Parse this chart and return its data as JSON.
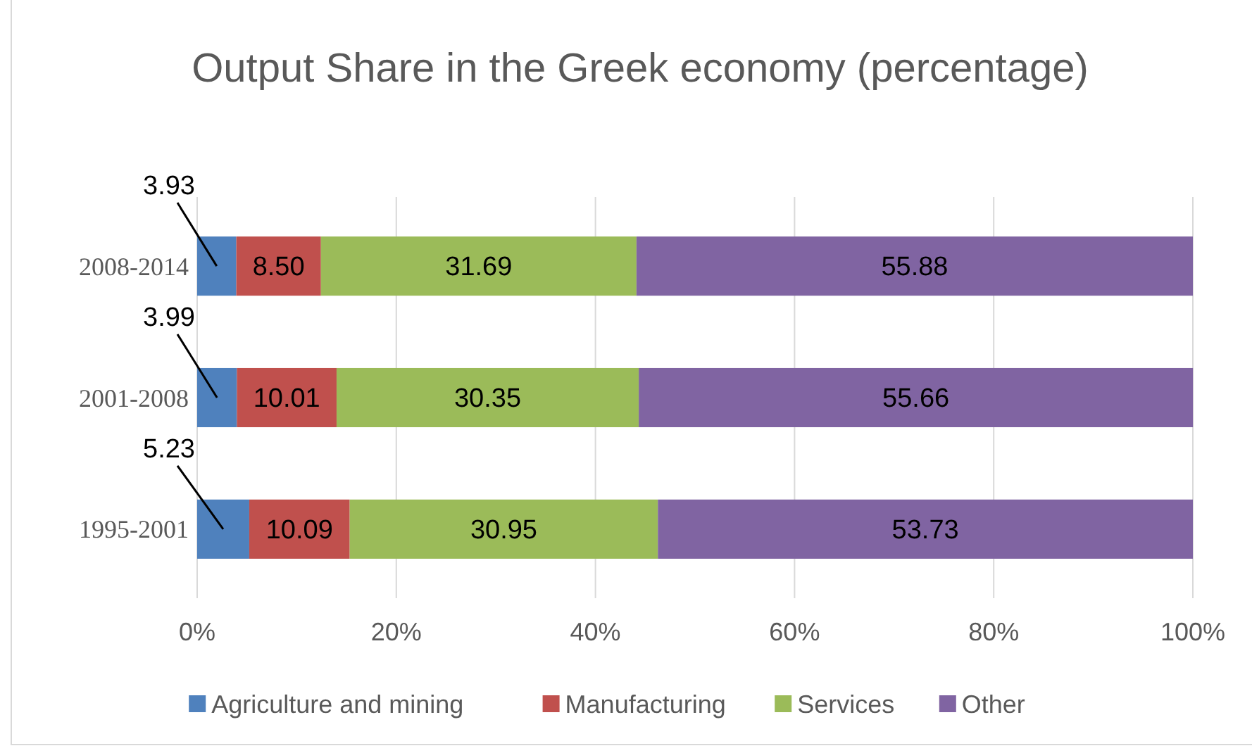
{
  "chart_data": {
    "type": "bar",
    "orientation": "horizontal",
    "stacked": true,
    "title": "Output Share in the Greek economy (percentage)",
    "categories": [
      "2008-2014",
      "2001-2008",
      "1995-2001"
    ],
    "series": [
      {
        "name": "Agriculture and mining",
        "color": "#4f81bd",
        "values": [
          3.93,
          3.99,
          5.23
        ]
      },
      {
        "name": "Manufacturing",
        "color": "#c0504d",
        "values": [
          8.5,
          10.01,
          10.09
        ]
      },
      {
        "name": "Services",
        "color": "#9bbb59",
        "values": [
          31.69,
          30.35,
          30.95
        ]
      },
      {
        "name": "Other",
        "color": "#8064a2",
        "values": [
          55.88,
          55.66,
          53.73
        ]
      }
    ],
    "value_labels": [
      [
        "3.93",
        "3.99",
        "5.23"
      ],
      [
        "8.50",
        "10.01",
        "10.09"
      ],
      [
        "31.69",
        "30.35",
        "30.95"
      ],
      [
        "55.88",
        "55.66",
        "53.73"
      ]
    ],
    "xlim": [
      0,
      100
    ],
    "xticks": [
      {
        "value": 0,
        "label": "0%"
      },
      {
        "value": 20,
        "label": "20%"
      },
      {
        "value": 40,
        "label": "40%"
      },
      {
        "value": 60,
        "label": "60%"
      },
      {
        "value": 80,
        "label": "80%"
      },
      {
        "value": 100,
        "label": "100%"
      }
    ],
    "grid": "x",
    "legend": "bottom"
  }
}
